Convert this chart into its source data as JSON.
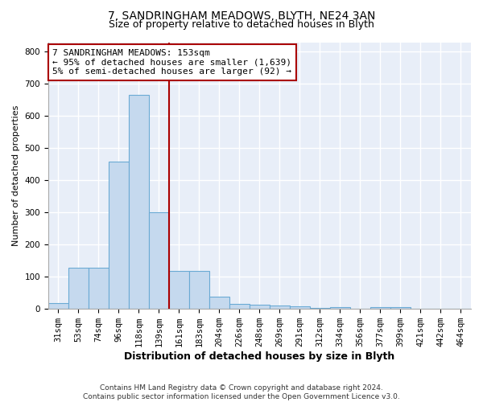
{
  "title1": "7, SANDRINGHAM MEADOWS, BLYTH, NE24 3AN",
  "title2": "Size of property relative to detached houses in Blyth",
  "xlabel": "Distribution of detached houses by size in Blyth",
  "ylabel": "Number of detached properties",
  "footer1": "Contains HM Land Registry data © Crown copyright and database right 2024.",
  "footer2": "Contains public sector information licensed under the Open Government Licence v3.0.",
  "categories": [
    "31sqm",
    "53sqm",
    "74sqm",
    "96sqm",
    "118sqm",
    "139sqm",
    "161sqm",
    "183sqm",
    "204sqm",
    "226sqm",
    "248sqm",
    "269sqm",
    "291sqm",
    "312sqm",
    "334sqm",
    "356sqm",
    "377sqm",
    "399sqm",
    "421sqm",
    "442sqm",
    "464sqm"
  ],
  "values": [
    18,
    127,
    128,
    458,
    665,
    302,
    117,
    117,
    37,
    15,
    14,
    10,
    7,
    2,
    5,
    0,
    5,
    5,
    0,
    0,
    0
  ],
  "bar_color": "#c5d9ee",
  "bar_edge_color": "#6aaad4",
  "bg_color": "#e8eef8",
  "grid_color": "#ffffff",
  "vline_x": 6.0,
  "vline_color": "#aa0000",
  "annotation_text": "7 SANDRINGHAM MEADOWS: 153sqm\n← 95% of detached houses are smaller (1,639)\n5% of semi-detached houses are larger (92) →",
  "annotation_box_color": "#aa0000",
  "ylim": [
    0,
    830
  ],
  "yticks": [
    0,
    100,
    200,
    300,
    400,
    500,
    600,
    700,
    800
  ],
  "title1_fontsize": 10,
  "title2_fontsize": 9,
  "ann_fontsize": 8,
  "tick_fontsize": 7.5,
  "ylabel_fontsize": 8,
  "xlabel_fontsize": 9,
  "footer_fontsize": 6.5
}
